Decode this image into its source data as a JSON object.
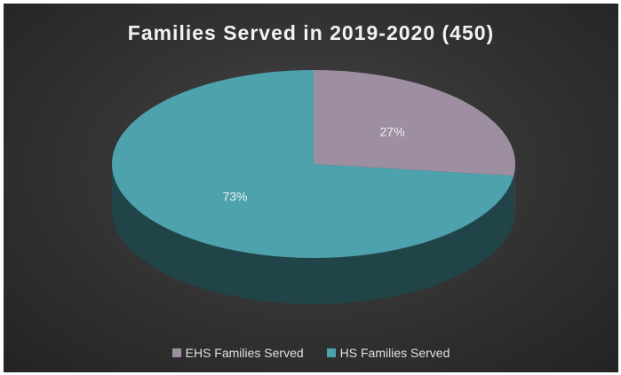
{
  "chart_data": {
    "type": "pie",
    "title": "Families Served in 2019-2020 (450)",
    "slices": [
      {
        "name": "EHS Families Served",
        "value": 27,
        "label": "27%",
        "color": "#9d8ea1"
      },
      {
        "name": "HS Families Served",
        "value": 73,
        "label": "73%",
        "color": "#4ea2ad"
      }
    ],
    "legend_position": "bottom",
    "style": "3d"
  }
}
